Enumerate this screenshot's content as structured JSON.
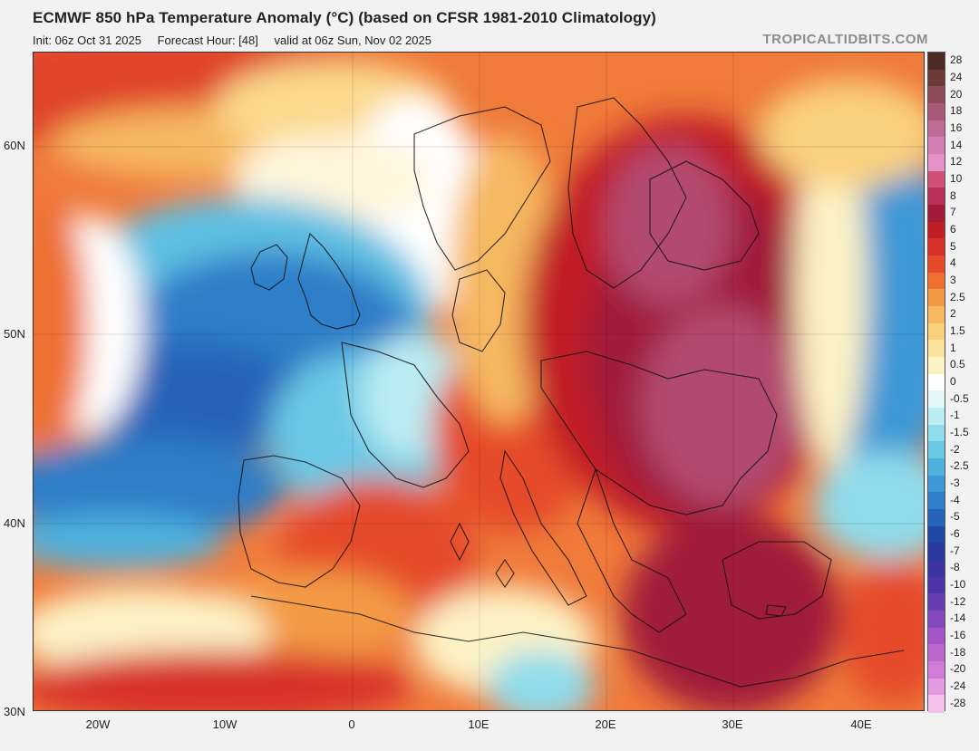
{
  "header": {
    "title": "ECMWF 850 hPa Temperature Anomaly (°C) (based on CFSR 1981-2010 Climatology)",
    "init": "Init: 06z Oct 31 2025",
    "forecast_hour": "Forecast Hour: [48]",
    "valid": "valid at 06z Sun, Nov 02 2025",
    "brand": "TROPICALTIDBITS.COM"
  },
  "axes": {
    "lat_labels": [
      "60N",
      "50N",
      "40N",
      "30N"
    ],
    "lon_labels": [
      "20W",
      "10W",
      "0",
      "10E",
      "20E",
      "30E",
      "40E"
    ]
  },
  "colorbar": {
    "labels": [
      "28",
      "24",
      "20",
      "18",
      "16",
      "14",
      "12",
      "10",
      "8",
      "7",
      "6",
      "5",
      "4",
      "3",
      "2.5",
      "2",
      "1.5",
      "1",
      "0.5",
      "0",
      "-0.5",
      "-1",
      "-1.5",
      "-2",
      "-2.5",
      "-3",
      "-4",
      "-5",
      "-6",
      "-7",
      "-8",
      "-10",
      "-12",
      "-14",
      "-16",
      "-18",
      "-20",
      "-24",
      "-28"
    ],
    "colors": [
      "#4d2a24",
      "#6e3a37",
      "#8e4a56",
      "#a85a78",
      "#c06b96",
      "#d37fb3",
      "#e690c9",
      "#d05078",
      "#b83158",
      "#a01c3a",
      "#c11f25",
      "#d8302a",
      "#e54b2a",
      "#ee6f30",
      "#f39a45",
      "#f6b861",
      "#f9d07d",
      "#fbe29c",
      "#fdf2c4",
      "#ffffff",
      "#e2f7f9",
      "#b9ecf3",
      "#8fdcec",
      "#6ac8e5",
      "#4fb2de",
      "#3d98d5",
      "#2f7ec8",
      "#2664b8",
      "#2049a4",
      "#2a3a9c",
      "#3b35a0",
      "#4f33a8",
      "#6a3db3",
      "#8549bd",
      "#a356c7",
      "#bd65cf",
      "#d27bd8",
      "#e49ae1",
      "#f3c1ea"
    ]
  },
  "map": {
    "description_colors": {
      "cold": "#2f6fc4",
      "neutral": "#ffffff",
      "warm": "#d8302a",
      "hot": "#a85a78"
    }
  }
}
